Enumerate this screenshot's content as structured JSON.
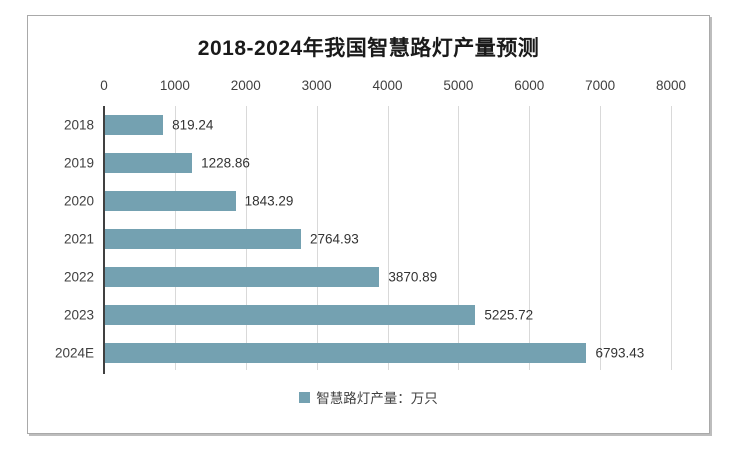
{
  "chart_data": {
    "type": "bar",
    "orientation": "horizontal",
    "title": "2018-2024年我国智慧路灯产量预测",
    "categories": [
      "2018",
      "2019",
      "2020",
      "2021",
      "2022",
      "2023",
      "2024E"
    ],
    "values": [
      819.24,
      1228.86,
      1843.29,
      2764.93,
      3870.89,
      5225.72,
      6793.43
    ],
    "series_name": "智慧路灯产量：万只",
    "xlim": [
      0,
      8000
    ],
    "x_tick_labels": [
      "0",
      "1000",
      "2000",
      "3000",
      "4000",
      "5000",
      "6000",
      "7000",
      "8000"
    ],
    "grid": true,
    "data_labels": true,
    "legend_position": "bottom",
    "colors": {
      "bar": "#74a1b1",
      "grid": "#d9d9d9",
      "axis": "#404040",
      "tick_text": "#404040",
      "value_text": "#333333",
      "title_text": "#1a1a1a",
      "frame_border": "#a9a9a9"
    }
  }
}
